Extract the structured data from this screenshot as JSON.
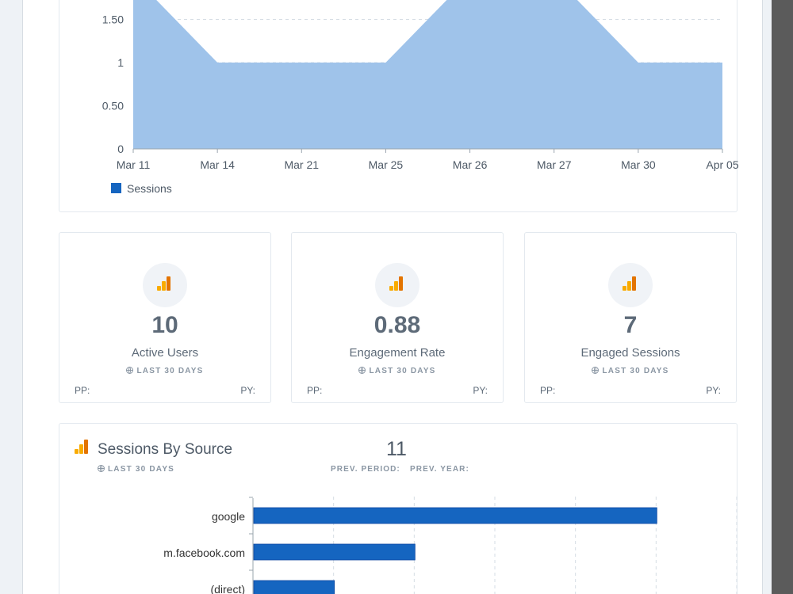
{
  "area_chart": {
    "chart_data": {
      "type": "area",
      "x": [
        "Mar 11",
        "Mar 14",
        "Mar 21",
        "Mar 25",
        "Mar 26",
        "Mar 27",
        "Mar 30",
        "Apr 05"
      ],
      "series": [
        {
          "name": "Sessions",
          "values": [
            2,
            1,
            1,
            1,
            2,
            2,
            1,
            1
          ]
        }
      ],
      "y_ticks": [
        "0",
        "0.50",
        "1",
        "1.50"
      ],
      "ylim": [
        0,
        2
      ],
      "legend_position": "bottom-left",
      "color": "#9fc3ea",
      "legend_color": "#1565c0"
    }
  },
  "metrics": [
    {
      "value": "10",
      "label": "Active Users",
      "period": "LAST 30 DAYS",
      "pp": "PP:",
      "py": "PY:"
    },
    {
      "value": "0.88",
      "label": "Engagement Rate",
      "period": "LAST 30 DAYS",
      "pp": "PP:",
      "py": "PY:"
    },
    {
      "value": "7",
      "label": "Engaged Sessions",
      "period": "LAST 30 DAYS",
      "pp": "PP:",
      "py": "PY:"
    }
  ],
  "sessions_by_source": {
    "title": "Sessions By Source",
    "period": "LAST 30 DAYS",
    "total": "11",
    "prev_period_label": "PREV. PERIOD:",
    "prev_year_label": "PREV. YEAR:",
    "chart_data": {
      "type": "bar",
      "orientation": "horizontal",
      "categories": [
        "google",
        "m.facebook.com",
        "(direct)"
      ],
      "values": [
        5,
        2,
        1
      ],
      "xlim": [
        0,
        6
      ],
      "color": "#1565c0"
    }
  }
}
